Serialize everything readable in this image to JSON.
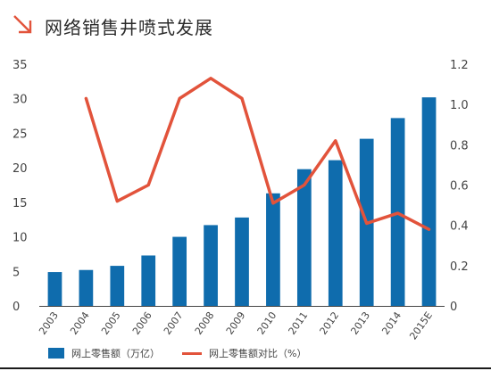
{
  "title": "网络销售井喷式发展",
  "colors": {
    "bar": "#0f6cad",
    "line": "#e2533b",
    "accent": "#e2533b",
    "axis": "#444444",
    "rule": "#1a1a1a"
  },
  "chart_data": {
    "type": "bar+line",
    "categories": [
      "2003",
      "2004",
      "2005",
      "2006",
      "2007",
      "2008",
      "2009",
      "2010",
      "2011",
      "2012",
      "2013",
      "2014",
      "2015E"
    ],
    "series": [
      {
        "name": "网上零售额（万亿）",
        "type": "bar",
        "axis": "left",
        "values": [
          4.9,
          5.2,
          5.8,
          7.3,
          10.0,
          11.7,
          12.8,
          16.3,
          19.8,
          21.1,
          24.2,
          27.2,
          30.2
        ]
      },
      {
        "name": "网上零售额对比（%）",
        "type": "line",
        "axis": "right",
        "values": [
          null,
          1.03,
          0.52,
          0.6,
          1.03,
          1.13,
          1.03,
          0.51,
          0.6,
          0.82,
          0.41,
          0.46,
          0.38
        ]
      }
    ],
    "y_left": {
      "lim": [
        0,
        35
      ],
      "ticks": [
        "0",
        "5",
        "10",
        "15",
        "20",
        "25",
        "30",
        "35"
      ]
    },
    "y_right": {
      "lim": [
        0,
        1.2
      ],
      "ticks": [
        "0",
        "0.2",
        "0.4",
        "0.6",
        "0.8",
        "1.0",
        "1.2"
      ]
    },
    "grid": false,
    "legend_position": "bottom"
  }
}
